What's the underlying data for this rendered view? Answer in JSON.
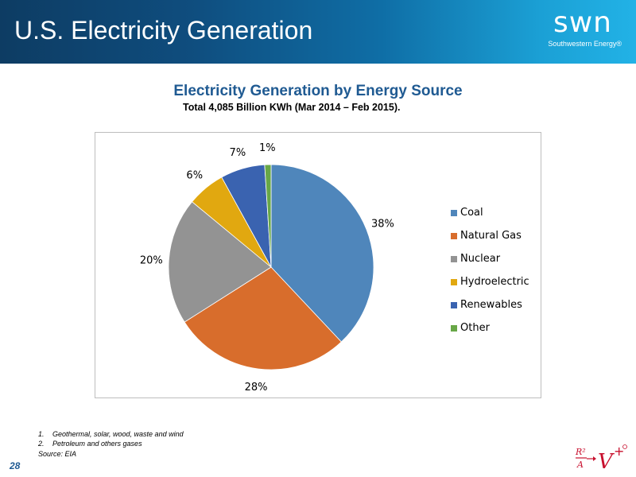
{
  "header": {
    "title": "U.S. Electricity Generation",
    "logo_text": "swn",
    "logo_subtext": "Southwestern Energy®"
  },
  "chart_title": "Electricity Generation by Energy Source",
  "chart_subtitle": "Total 4,085 Billion KWh (Mar 2014 – Feb 2015).",
  "chart_data": {
    "type": "pie",
    "categories": [
      "Coal",
      "Natural Gas",
      "Nuclear",
      "Hydroelectric",
      "Renewables",
      "Other"
    ],
    "values": [
      38,
      28,
      20,
      6,
      7,
      1
    ],
    "labels": [
      "38%",
      "28%",
      "20%",
      "6%",
      "7%",
      "1%"
    ],
    "colors": [
      "#4f86bb",
      "#d86d2c",
      "#939393",
      "#e1a810",
      "#3a63b0",
      "#68a747"
    ],
    "legend_position": "right"
  },
  "footnotes": [
    {
      "num": "1.",
      "text": "Geothermal, solar, wood, waste and wind"
    },
    {
      "num": "2.",
      "text": "Petroleum and others gases"
    }
  ],
  "source": "Source: EIA",
  "page_number": "28"
}
